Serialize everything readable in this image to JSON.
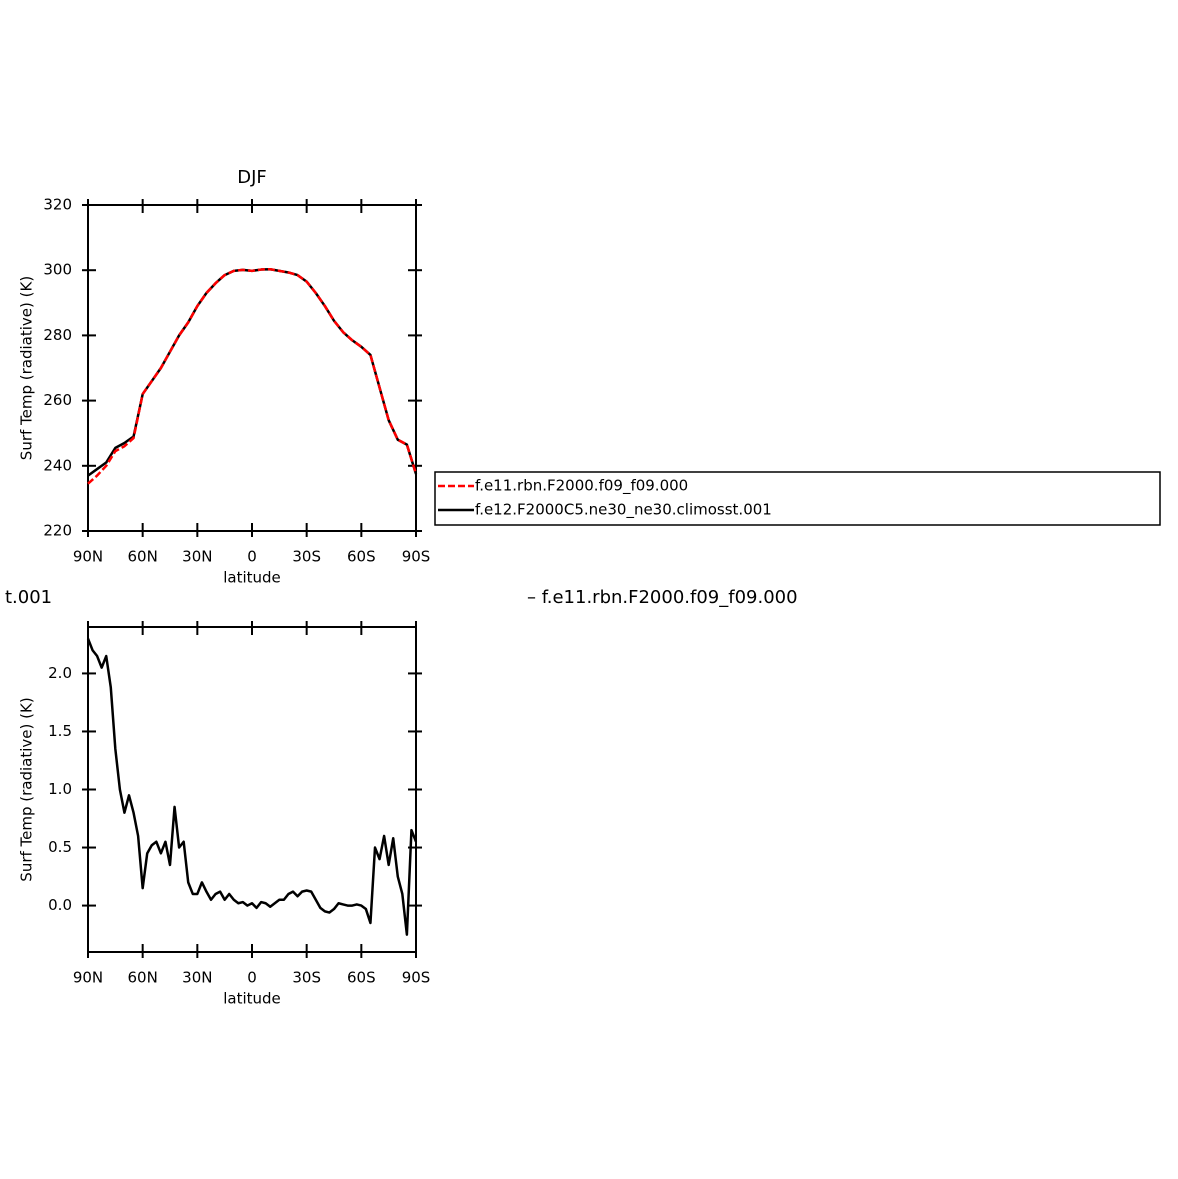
{
  "chart_data": [
    {
      "type": "line",
      "title": "DJF",
      "xlabel": "latitude",
      "ylabel": "Surf Temp (radiative) (K)",
      "x": [
        90,
        85,
        80,
        75,
        70,
        65,
        60,
        55,
        50,
        45,
        40,
        35,
        30,
        25,
        20,
        15,
        10,
        5,
        0,
        -5,
        -10,
        -15,
        -20,
        -25,
        -30,
        -35,
        -40,
        -45,
        -50,
        -55,
        -60,
        -65,
        -70,
        -75,
        -80,
        -85,
        -90
      ],
      "series": [
        {
          "name": "f.e11.rbn.F2000.f09_f09.000",
          "color": "#ff0000",
          "dash": true,
          "values": [
            234.5,
            237,
            240,
            244.5,
            246,
            248.5,
            262,
            266,
            270,
            275,
            280,
            284,
            289,
            293,
            296,
            298.5,
            299.8,
            300.1,
            299.8,
            300.2,
            300.3,
            299.8,
            299.3,
            298.5,
            296.5,
            293,
            289,
            284.5,
            281,
            278.5,
            276.5,
            274,
            264,
            254,
            248,
            246.5,
            237.5
          ]
        },
        {
          "name": "f.e12.F2000C5.ne30_ne30.climosst.001",
          "color": "#000000",
          "dash": false,
          "values": [
            237,
            239,
            241,
            245.5,
            247,
            249,
            262,
            266,
            270,
            275,
            280,
            284,
            289,
            293,
            296,
            298.5,
            299.8,
            300.1,
            299.8,
            300.2,
            300.3,
            299.8,
            299.3,
            298.5,
            296.5,
            293,
            289,
            284.5,
            281,
            278.5,
            276.5,
            274,
            264,
            254,
            248,
            246.5,
            237.5
          ]
        }
      ],
      "xlim": [
        90,
        -90
      ],
      "xticks": [
        {
          "value": 90,
          "label": "90N"
        },
        {
          "value": 60,
          "label": "60N"
        },
        {
          "value": 30,
          "label": "30N"
        },
        0,
        {
          "value": -30,
          "label": "30S"
        },
        {
          "value": -60,
          "label": "60S"
        },
        {
          "value": -90,
          "label": "90S"
        }
      ],
      "ylim": [
        220,
        320
      ],
      "yticks": [
        220,
        240,
        260,
        280,
        300,
        320
      ],
      "legend": "right"
    },
    {
      "type": "line",
      "annotations": [
        "t.001",
        "– f.e11.rbn.F2000.f09_f09.000"
      ],
      "xlabel": "latitude",
      "ylabel": "Surf Temp (radiative) (K)",
      "x": [
        90,
        87.5,
        85,
        82.5,
        80,
        77.5,
        75,
        72.5,
        70,
        67.5,
        65,
        62.5,
        60,
        57.5,
        55,
        52.5,
        50,
        47.5,
        45,
        42.5,
        40,
        37.5,
        35,
        32.5,
        30,
        27.5,
        25,
        22.5,
        20,
        17.5,
        15,
        12.5,
        10,
        7.5,
        5,
        2.5,
        0,
        -2.5,
        -5,
        -7.5,
        -10,
        -12.5,
        -15,
        -17.5,
        -20,
        -22.5,
        -25,
        -27.5,
        -30,
        -32.5,
        -35,
        -37.5,
        -40,
        -42.5,
        -45,
        -47.5,
        -50,
        -52.5,
        -55,
        -57.5,
        -60,
        -62.5,
        -65,
        -67.5,
        -70,
        -72.5,
        -75,
        -77.5,
        -80,
        -82.5,
        -85,
        -87.5,
        -90
      ],
      "color": "#000000",
      "values": [
        2.3,
        2.2,
        2.15,
        2.05,
        2.15,
        1.88,
        1.35,
        1.0,
        0.8,
        0.95,
        0.8,
        0.6,
        0.15,
        0.45,
        0.52,
        0.55,
        0.45,
        0.55,
        0.35,
        0.85,
        0.5,
        0.55,
        0.2,
        0.1,
        0.1,
        0.2,
        0.12,
        0.05,
        0.1,
        0.12,
        0.05,
        0.1,
        0.05,
        0.02,
        0.03,
        0,
        0.02,
        -0.02,
        0.03,
        0.02,
        -0.01,
        0.02,
        0.05,
        0.05,
        0.1,
        0.12,
        0.08,
        0.12,
        0.13,
        0.12,
        0.05,
        -0.02,
        -0.05,
        -0.06,
        -0.03,
        0.02,
        0.01,
        0,
        0,
        0.01,
        0,
        -0.03,
        -0.15,
        0.5,
        0.4,
        0.6,
        0.35,
        0.58,
        0.25,
        0.1,
        -0.25,
        0.65,
        0.55
      ],
      "xlim": [
        90,
        -90
      ],
      "xticks": [
        {
          "value": 90,
          "label": "90N"
        },
        {
          "value": 60,
          "label": "60N"
        },
        {
          "value": 30,
          "label": "30N"
        },
        0,
        {
          "value": -30,
          "label": "30S"
        },
        {
          "value": -60,
          "label": "60S"
        },
        {
          "value": -90,
          "label": "90S"
        }
      ],
      "ylim": [
        -0.4,
        2.4
      ],
      "yticks": [
        {
          "value": 0,
          "label": "0.0"
        },
        0.5,
        {
          "value": 1,
          "label": "1.0"
        },
        1.5,
        {
          "value": 2,
          "label": "2.0"
        }
      ]
    }
  ]
}
